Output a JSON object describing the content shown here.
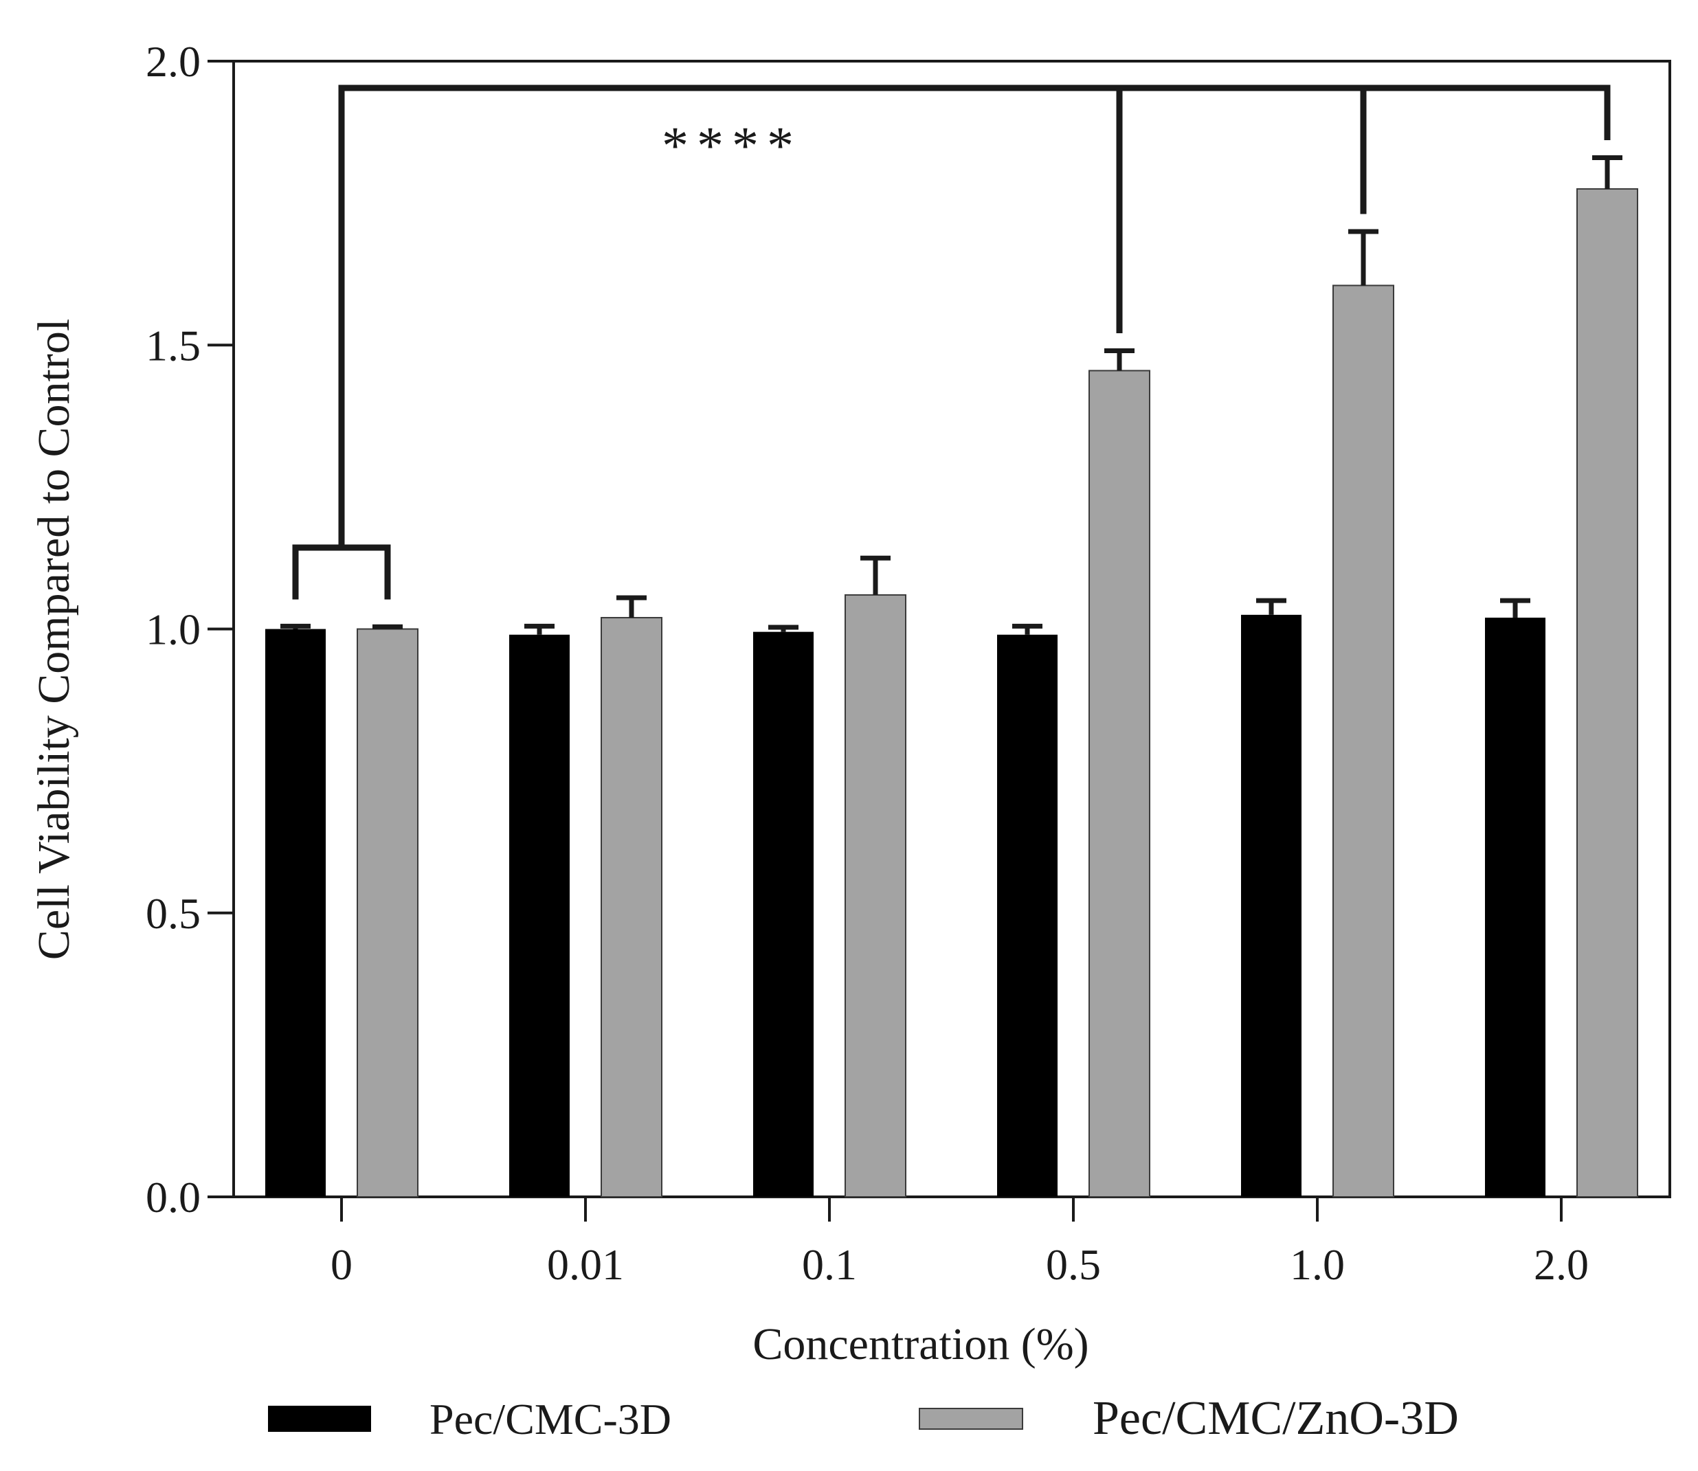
{
  "chart_data": {
    "type": "bar",
    "title": "",
    "xlabel": "Concentration (%)",
    "ylabel": "Cell Viability Compared to Control",
    "categories": [
      "0",
      "0.01",
      "0.1",
      "0.5",
      "1.0",
      "2.0"
    ],
    "ylim": [
      0,
      2.0
    ],
    "yticks": [
      0.0,
      0.5,
      1.0,
      1.5,
      2.0
    ],
    "ytick_labels": [
      "0.0",
      "0.5",
      "1.0",
      "1.5",
      "2.0"
    ],
    "grid": false,
    "legend_position": "bottom",
    "series": [
      {
        "name": "Pec/CMC-3D",
        "color": "#000000",
        "values": [
          1.0,
          0.99,
          0.995,
          0.99,
          1.025,
          1.02
        ],
        "errors": [
          0.005,
          0.015,
          0.008,
          0.015,
          0.025,
          0.03
        ]
      },
      {
        "name": "Pec/CMC/ZnO-3D",
        "color": "#a3a3a3",
        "values": [
          1.0,
          1.02,
          1.06,
          1.455,
          1.605,
          1.775
        ],
        "errors": [
          0.004,
          0.035,
          0.065,
          0.035,
          0.095,
          0.055
        ]
      }
    ],
    "annotations": [
      {
        "text": "****",
        "type": "significance-bracket",
        "from_category": "0",
        "to_series": "Pec/CMC/ZnO-3D",
        "to_categories": [
          "0.5",
          "1.0",
          "2.0"
        ]
      }
    ]
  }
}
